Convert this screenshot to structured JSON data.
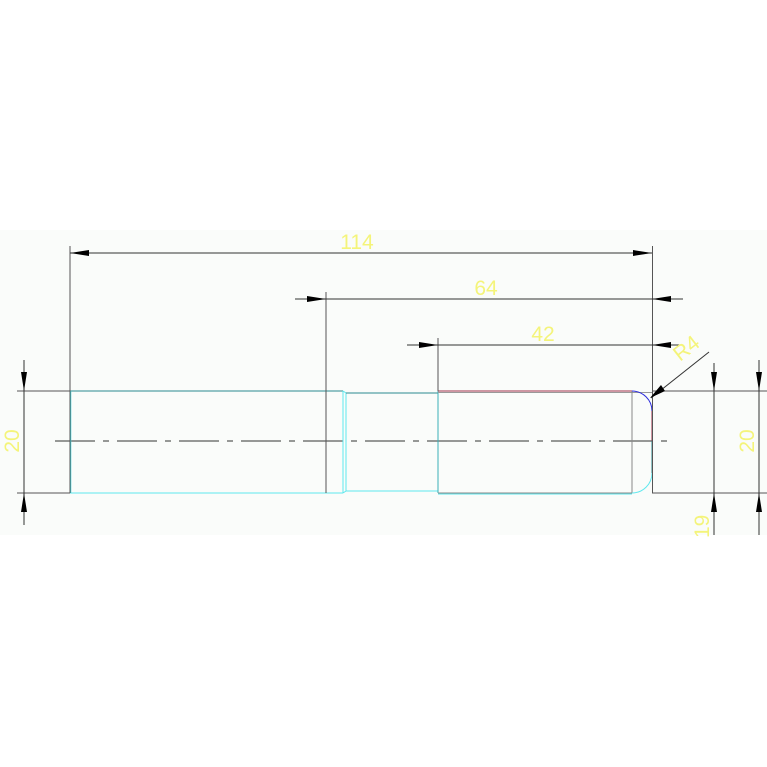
{
  "drawing": {
    "dimensions": {
      "overall_length": "114",
      "length_64": "64",
      "length_42": "42",
      "fillet_radius": "R4",
      "left_diameter": "20",
      "right_diameter": "20",
      "right_small": "19"
    },
    "colors": {
      "background": "#fafcfa",
      "dimension_text": "#f4f47a",
      "outline_cyan": "#5fe8ee",
      "outline_teal": "#2a8a90",
      "outline_red": "#a0304a",
      "fillet_blue": "#2a2adc",
      "dimension_line": "#333333"
    }
  }
}
